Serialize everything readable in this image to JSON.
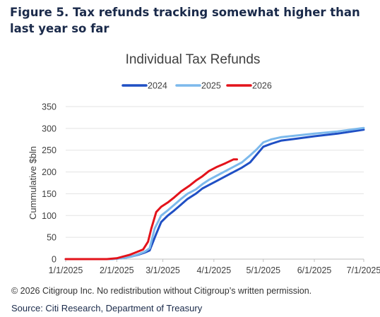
{
  "figure": {
    "title": "Figure 5. Tax refunds tracking somewhat higher than last year so far",
    "copyright": "© 2026 Citigroup Inc. No redistribution without Citigroup’s written permission.",
    "source": "Source: Citi Research, Department of Treasury"
  },
  "chart_data": {
    "type": "line",
    "title": "Individual Tax Refunds",
    "xlabel": "",
    "ylabel": "Cummulative $bln",
    "x_tick_labels": [
      "1/1/2025",
      "2/1/2025",
      "3/1/2025",
      "4/1/2025",
      "5/1/2025",
      "6/1/2025",
      "7/1/2025"
    ],
    "y_tick_labels": [
      "0",
      "50",
      "100",
      "150",
      "200",
      "250",
      "300",
      "350"
    ],
    "ylim": [
      0,
      350
    ],
    "xlim": [
      "2025-01-01",
      "2025-07-01"
    ],
    "grid": "horizontal",
    "legend_position": "top-center",
    "series": [
      {
        "name": "2024",
        "color": "#1f4fc4",
        "points": [
          [
            "2025-01-01",
            0
          ],
          [
            "2025-01-15",
            0
          ],
          [
            "2025-01-28",
            0
          ],
          [
            "2025-02-01",
            1
          ],
          [
            "2025-02-06",
            3
          ],
          [
            "2025-02-10",
            6
          ],
          [
            "2025-02-14",
            10
          ],
          [
            "2025-02-18",
            15
          ],
          [
            "2025-02-21",
            20
          ],
          [
            "2025-02-25",
            58
          ],
          [
            "2025-02-28",
            85
          ],
          [
            "2025-03-04",
            100
          ],
          [
            "2025-03-08",
            112
          ],
          [
            "2025-03-12",
            125
          ],
          [
            "2025-03-16",
            138
          ],
          [
            "2025-03-21",
            150
          ],
          [
            "2025-03-25",
            162
          ],
          [
            "2025-03-29",
            170
          ],
          [
            "2025-04-03",
            180
          ],
          [
            "2025-04-08",
            190
          ],
          [
            "2025-04-13",
            200
          ],
          [
            "2025-04-18",
            210
          ],
          [
            "2025-04-23",
            222
          ],
          [
            "2025-04-27",
            240
          ],
          [
            "2025-05-01",
            258
          ],
          [
            "2025-05-06",
            265
          ],
          [
            "2025-05-12",
            272
          ],
          [
            "2025-05-20",
            276
          ],
          [
            "2025-06-01",
            282
          ],
          [
            "2025-06-15",
            288
          ],
          [
            "2025-07-01",
            297
          ]
        ]
      },
      {
        "name": "2025",
        "color": "#7cb9ec",
        "points": [
          [
            "2025-01-01",
            0
          ],
          [
            "2025-01-15",
            0
          ],
          [
            "2025-01-28",
            0
          ],
          [
            "2025-02-01",
            1
          ],
          [
            "2025-02-06",
            3
          ],
          [
            "2025-02-10",
            6
          ],
          [
            "2025-02-14",
            11
          ],
          [
            "2025-02-18",
            17
          ],
          [
            "2025-02-21",
            25
          ],
          [
            "2025-02-24",
            70
          ],
          [
            "2025-02-28",
            100
          ],
          [
            "2025-03-04",
            112
          ],
          [
            "2025-03-08",
            125
          ],
          [
            "2025-03-12",
            138
          ],
          [
            "2025-03-16",
            150
          ],
          [
            "2025-03-21",
            160
          ],
          [
            "2025-03-25",
            172
          ],
          [
            "2025-03-29",
            182
          ],
          [
            "2025-04-03",
            192
          ],
          [
            "2025-04-08",
            202
          ],
          [
            "2025-04-13",
            212
          ],
          [
            "2025-04-18",
            222
          ],
          [
            "2025-04-23",
            238
          ],
          [
            "2025-04-27",
            252
          ],
          [
            "2025-05-01",
            268
          ],
          [
            "2025-05-06",
            275
          ],
          [
            "2025-05-12",
            280
          ],
          [
            "2025-05-20",
            283
          ],
          [
            "2025-06-01",
            288
          ],
          [
            "2025-06-15",
            293
          ],
          [
            "2025-07-01",
            301
          ]
        ]
      },
      {
        "name": "2026",
        "color": "#e3131b",
        "points": [
          [
            "2025-01-01",
            0
          ],
          [
            "2025-01-15",
            0
          ],
          [
            "2025-01-26",
            0
          ],
          [
            "2025-02-01",
            2
          ],
          [
            "2025-02-05",
            6
          ],
          [
            "2025-02-09",
            10
          ],
          [
            "2025-02-13",
            16
          ],
          [
            "2025-02-17",
            22
          ],
          [
            "2025-02-20",
            40
          ],
          [
            "2025-02-22",
            70
          ],
          [
            "2025-02-25",
            108
          ],
          [
            "2025-02-28",
            120
          ],
          [
            "2025-03-04",
            130
          ],
          [
            "2025-03-08",
            142
          ],
          [
            "2025-03-12",
            155
          ],
          [
            "2025-03-17",
            168
          ],
          [
            "2025-03-21",
            180
          ],
          [
            "2025-03-25",
            190
          ],
          [
            "2025-03-29",
            202
          ],
          [
            "2025-04-03",
            212
          ],
          [
            "2025-04-08",
            220
          ],
          [
            "2025-04-13",
            229
          ],
          [
            "2025-04-15",
            229
          ]
        ]
      }
    ]
  }
}
